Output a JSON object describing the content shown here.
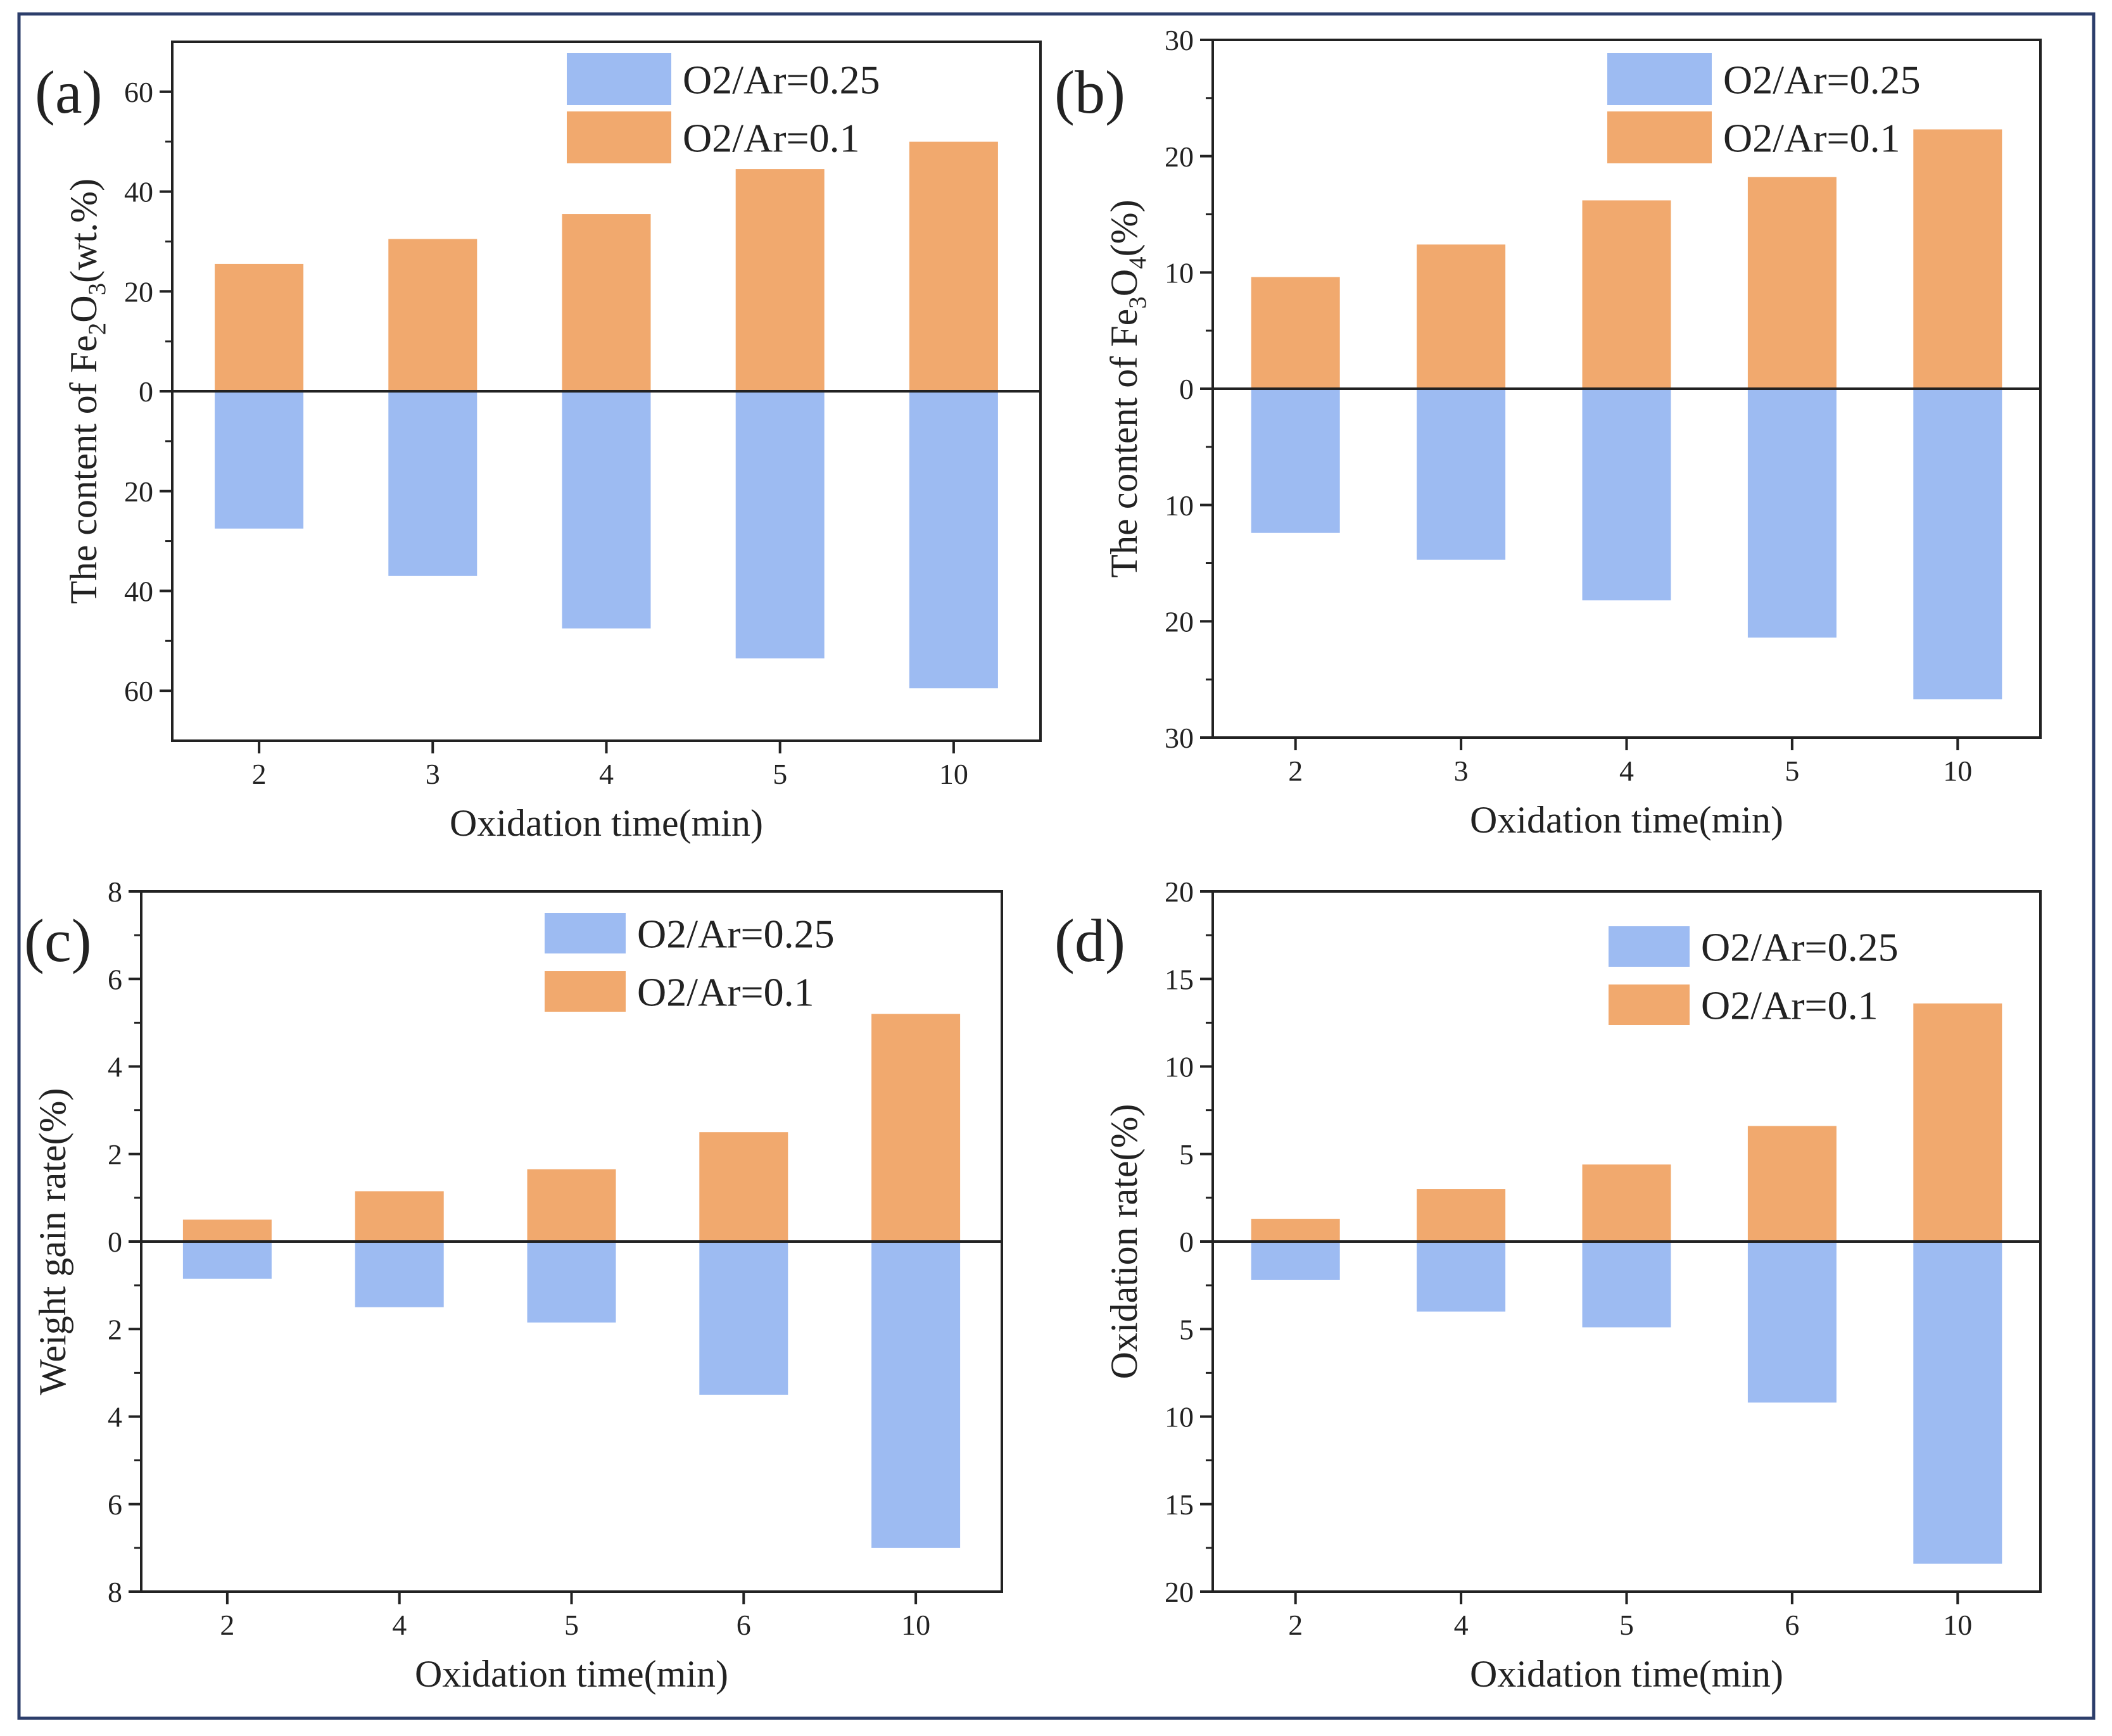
{
  "colors": {
    "series_0": "#9dbbf2",
    "series_1": "#f1a96e",
    "frame": "#2c3e6b",
    "axis": "#222222"
  },
  "chart_data": [
    {
      "type": "bar",
      "panel_label": "(a)",
      "xlabel": "Oxidation time(min)",
      "ylabel": "The content of Fe2O3(wt.%)",
      "ylabel_parts": [
        "The content of Fe",
        "2",
        "O",
        "3",
        "(wt.%)"
      ],
      "categories": [
        "2",
        "3",
        "4",
        "5",
        "10"
      ],
      "ylim": [
        -70,
        70
      ],
      "yticks": [
        -60,
        -40,
        -20,
        0,
        20,
        40,
        60
      ],
      "ytick_labels": [
        "60",
        "40",
        "20",
        "0",
        "20",
        "40",
        "60"
      ],
      "yticks_minor": [
        -50,
        -30,
        -10,
        10,
        30,
        50
      ],
      "series": [
        {
          "name": "O2/Ar=0.25",
          "direction": "down",
          "values": [
            27.5,
            37,
            47.5,
            53.5,
            59.5
          ]
        },
        {
          "name": "O2/Ar=0.1",
          "direction": "up",
          "values": [
            25.5,
            30.5,
            35.5,
            44.5,
            50
          ]
        }
      ]
    },
    {
      "type": "bar",
      "panel_label": "(b)",
      "xlabel": "Oxidation time(min)",
      "ylabel": "The content of Fe3O4(%)",
      "ylabel_parts": [
        "The content of Fe",
        "3",
        "O",
        "4",
        "(%)"
      ],
      "categories": [
        "2",
        "3",
        "4",
        "5",
        "10"
      ],
      "ylim": [
        -30,
        30
      ],
      "yticks": [
        -30,
        -20,
        -10,
        0,
        10,
        20,
        30
      ],
      "ytick_labels": [
        "30",
        "20",
        "10",
        "0",
        "10",
        "20",
        "30"
      ],
      "yticks_minor": [
        -25,
        -15,
        -5,
        5,
        15,
        25
      ],
      "series": [
        {
          "name": "O2/Ar=0.25",
          "direction": "down",
          "values": [
            12.4,
            14.7,
            18.2,
            21.4,
            26.7
          ]
        },
        {
          "name": "O2/Ar=0.1",
          "direction": "up",
          "values": [
            9.6,
            12.4,
            16.2,
            18.2,
            22.3
          ]
        }
      ]
    },
    {
      "type": "bar",
      "panel_label": "(c)",
      "xlabel": "Oxidation time(min)",
      "ylabel": "Weight gain rate(%)",
      "ylabel_parts": [
        "Weight gain rate(%)"
      ],
      "categories": [
        "2",
        "4",
        "5",
        "6",
        "10"
      ],
      "ylim": [
        -8,
        8
      ],
      "yticks": [
        -8,
        -6,
        -4,
        -2,
        0,
        2,
        4,
        6,
        8
      ],
      "ytick_labels": [
        "8",
        "6",
        "4",
        "2",
        "0",
        "2",
        "4",
        "6",
        "8"
      ],
      "yticks_minor": [
        -7,
        -5,
        -3,
        -1,
        1,
        3,
        5,
        7
      ],
      "series": [
        {
          "name": "O2/Ar=0.25",
          "direction": "down",
          "values": [
            0.85,
            1.5,
            1.85,
            3.5,
            7.0
          ]
        },
        {
          "name": "O2/Ar=0.1",
          "direction": "up",
          "values": [
            0.5,
            1.15,
            1.65,
            2.5,
            5.2
          ]
        }
      ]
    },
    {
      "type": "bar",
      "panel_label": "(d)",
      "xlabel": "Oxidation time(min)",
      "ylabel": "Oxidation rate(%)",
      "ylabel_parts": [
        "Oxidation rate(%)"
      ],
      "categories": [
        "2",
        "4",
        "5",
        "6",
        "10"
      ],
      "ylim": [
        -20,
        20
      ],
      "yticks": [
        -20,
        -15,
        -10,
        -5,
        0,
        5,
        10,
        15,
        20
      ],
      "ytick_labels": [
        "20",
        "15",
        "10",
        "5",
        "0",
        "5",
        "10",
        "15",
        "20"
      ],
      "yticks_minor": [
        -17.5,
        -12.5,
        -7.5,
        -2.5,
        2.5,
        7.5,
        12.5,
        17.5
      ],
      "series": [
        {
          "name": "O2/Ar=0.25",
          "direction": "down",
          "values": [
            2.2,
            4.0,
            4.9,
            9.2,
            18.4
          ]
        },
        {
          "name": "O2/Ar=0.1",
          "direction": "up",
          "values": [
            1.3,
            3.0,
            4.4,
            6.6,
            13.6
          ]
        }
      ]
    }
  ]
}
